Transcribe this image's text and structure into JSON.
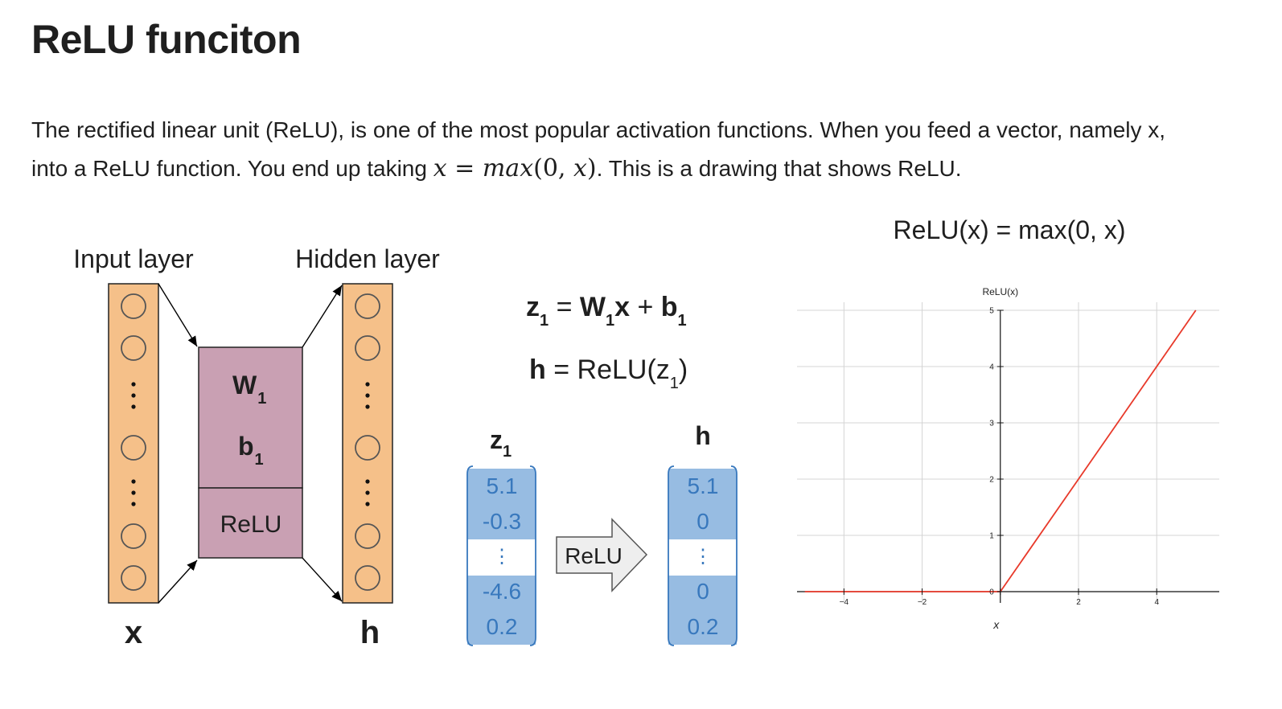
{
  "page": {
    "title": "ReLU funciton",
    "para_line1": "The rectified linear unit (ReLU), is one of the most popular activation functions. When you feed a vector, namely x,",
    "para_line2_before": "into a ReLU function. You end up taking ",
    "math_x1": "x",
    "math_eq": " = ",
    "math_max": "max",
    "math_open": "(0, ",
    "math_x2": "x",
    "math_close": ")",
    "para_line2_after": ". This is a drawing that shows ReLU."
  },
  "diagram": {
    "input_layer_label": "Input layer",
    "hidden_layer_label": "Hidden layer",
    "x_label": "x",
    "h_label": "h",
    "weight_label": "W",
    "weight_sub": "1",
    "bias_label": "b",
    "bias_sub": "1",
    "relu_box_label": "ReLU",
    "eq1": {
      "z": "z",
      "z_sub": "1",
      "equals": " = ",
      "w": "W",
      "w_sub": "1",
      "x": "x",
      "plus": " + ",
      "b": "b",
      "b_sub": "1"
    },
    "eq2": {
      "h": "h",
      "rest": " = ReLU(z",
      "sub": "1",
      "close": ")"
    },
    "z_header": "z",
    "z_header_sub": "1",
    "h_header": "h",
    "z_values": [
      "5.1",
      "-0.3",
      "⋮",
      "-4.6",
      "0.2"
    ],
    "h_values": [
      "5.1",
      "0",
      "⋮",
      "0",
      "0.2"
    ],
    "arrow_label": "ReLU",
    "colors": {
      "layer_fill": "#f5c089",
      "box_fill": "#c9a0b3",
      "vector_fill": "#97bce2",
      "vector_text": "#3878bd"
    }
  },
  "chart_title": "ReLU(x) = max(0, x)",
  "chart_data": {
    "type": "line",
    "title": "ReLU(x) = max(0, x)",
    "xlabel": "x",
    "ylabel": "ReLU(x)",
    "xlim": [
      -5.2,
      5.6
    ],
    "ylim": [
      -0.2,
      5.2
    ],
    "xticks": [
      -4,
      -2,
      0,
      2,
      4
    ],
    "yticks": [
      0,
      1,
      2,
      3,
      4,
      5
    ],
    "grid": true,
    "series": [
      {
        "name": "",
        "color": "#e8392a",
        "x": [
          -5,
          0
        ],
        "y": [
          0,
          0
        ]
      },
      {
        "name": "",
        "color": "#e8392a",
        "x": [
          0,
          5
        ],
        "y": [
          0,
          5
        ]
      }
    ]
  }
}
